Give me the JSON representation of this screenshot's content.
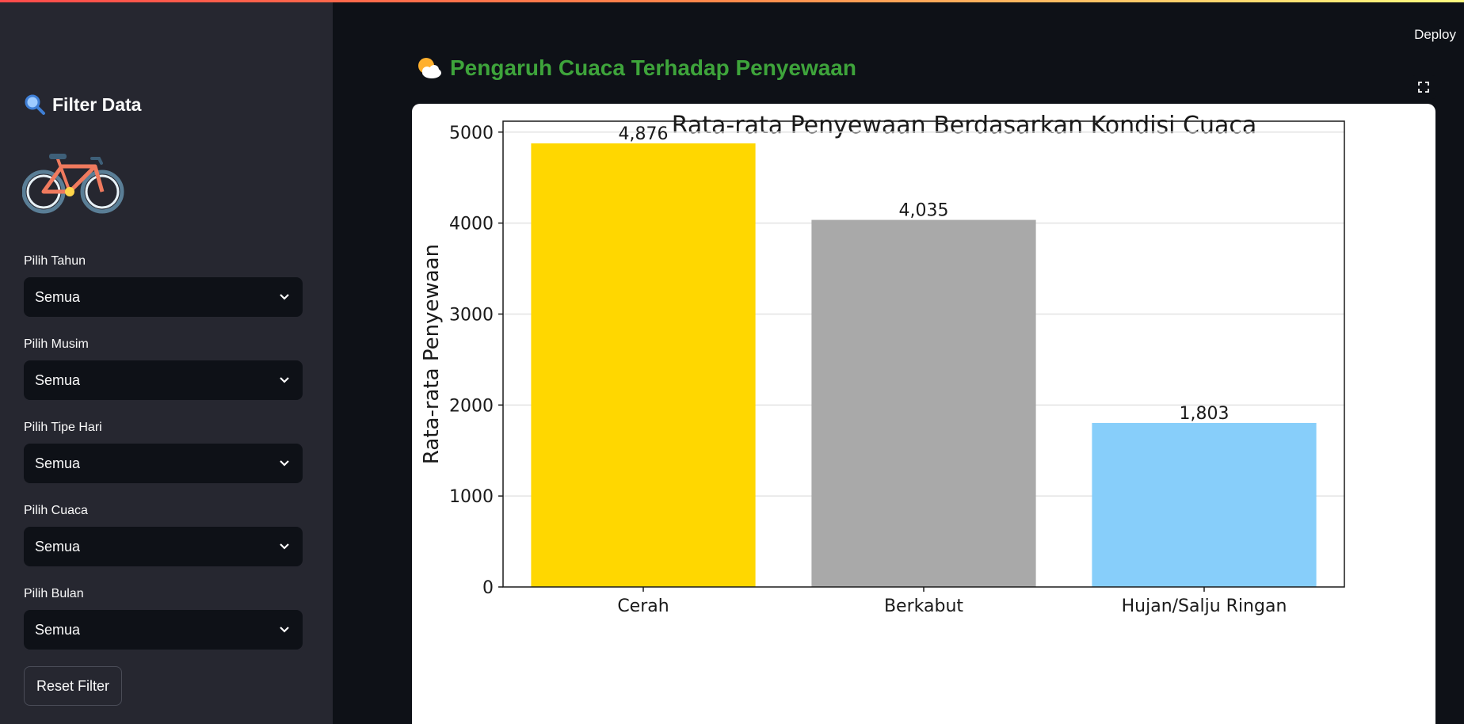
{
  "app": {
    "deploy_label": "Deploy"
  },
  "sidebar": {
    "header": "Filter Data",
    "filters": [
      {
        "label": "Pilih Tahun",
        "value": "Semua"
      },
      {
        "label": "Pilih Musim",
        "value": "Semua"
      },
      {
        "label": "Pilih Tipe Hari",
        "value": "Semua"
      },
      {
        "label": "Pilih Cuaca",
        "value": "Semua"
      },
      {
        "label": "Pilih Bulan",
        "value": "Semua"
      }
    ],
    "reset_label": "Reset Filter",
    "icons": {
      "header": "magnifier-icon",
      "illustration": "bicycle-icon",
      "dropdown": "chevron-down-icon"
    }
  },
  "main": {
    "title": "Pengaruh Cuaca Terhadap Penyewaan",
    "title_icon": "sun-behind-cloud-icon",
    "fullscreen_icon": "fullscreen-icon"
  },
  "colors": {
    "accent": "#ff4b4b",
    "title_green": "#3ea43b",
    "sidebar_bg": "#262730",
    "app_bg": "#0e1117"
  },
  "chart_data": {
    "type": "bar",
    "title": "Rata-rata Penyewaan Berdasarkan Kondisi Cuaca",
    "xlabel": "",
    "ylabel": "Rata-rata Penyewaan",
    "categories": [
      "Cerah",
      "Berkabut",
      "Hujan/Salju Ringan"
    ],
    "values": [
      4876,
      4035,
      1803
    ],
    "value_labels": [
      "4,876",
      "4,035",
      "1,803"
    ],
    "colors": [
      "#ffd700",
      "#a9a9a9",
      "#87cefa"
    ],
    "ylim": [
      0,
      5120
    ],
    "yticks": [
      0,
      1000,
      2000,
      3000,
      4000,
      5000
    ],
    "grid": "horizontal"
  }
}
